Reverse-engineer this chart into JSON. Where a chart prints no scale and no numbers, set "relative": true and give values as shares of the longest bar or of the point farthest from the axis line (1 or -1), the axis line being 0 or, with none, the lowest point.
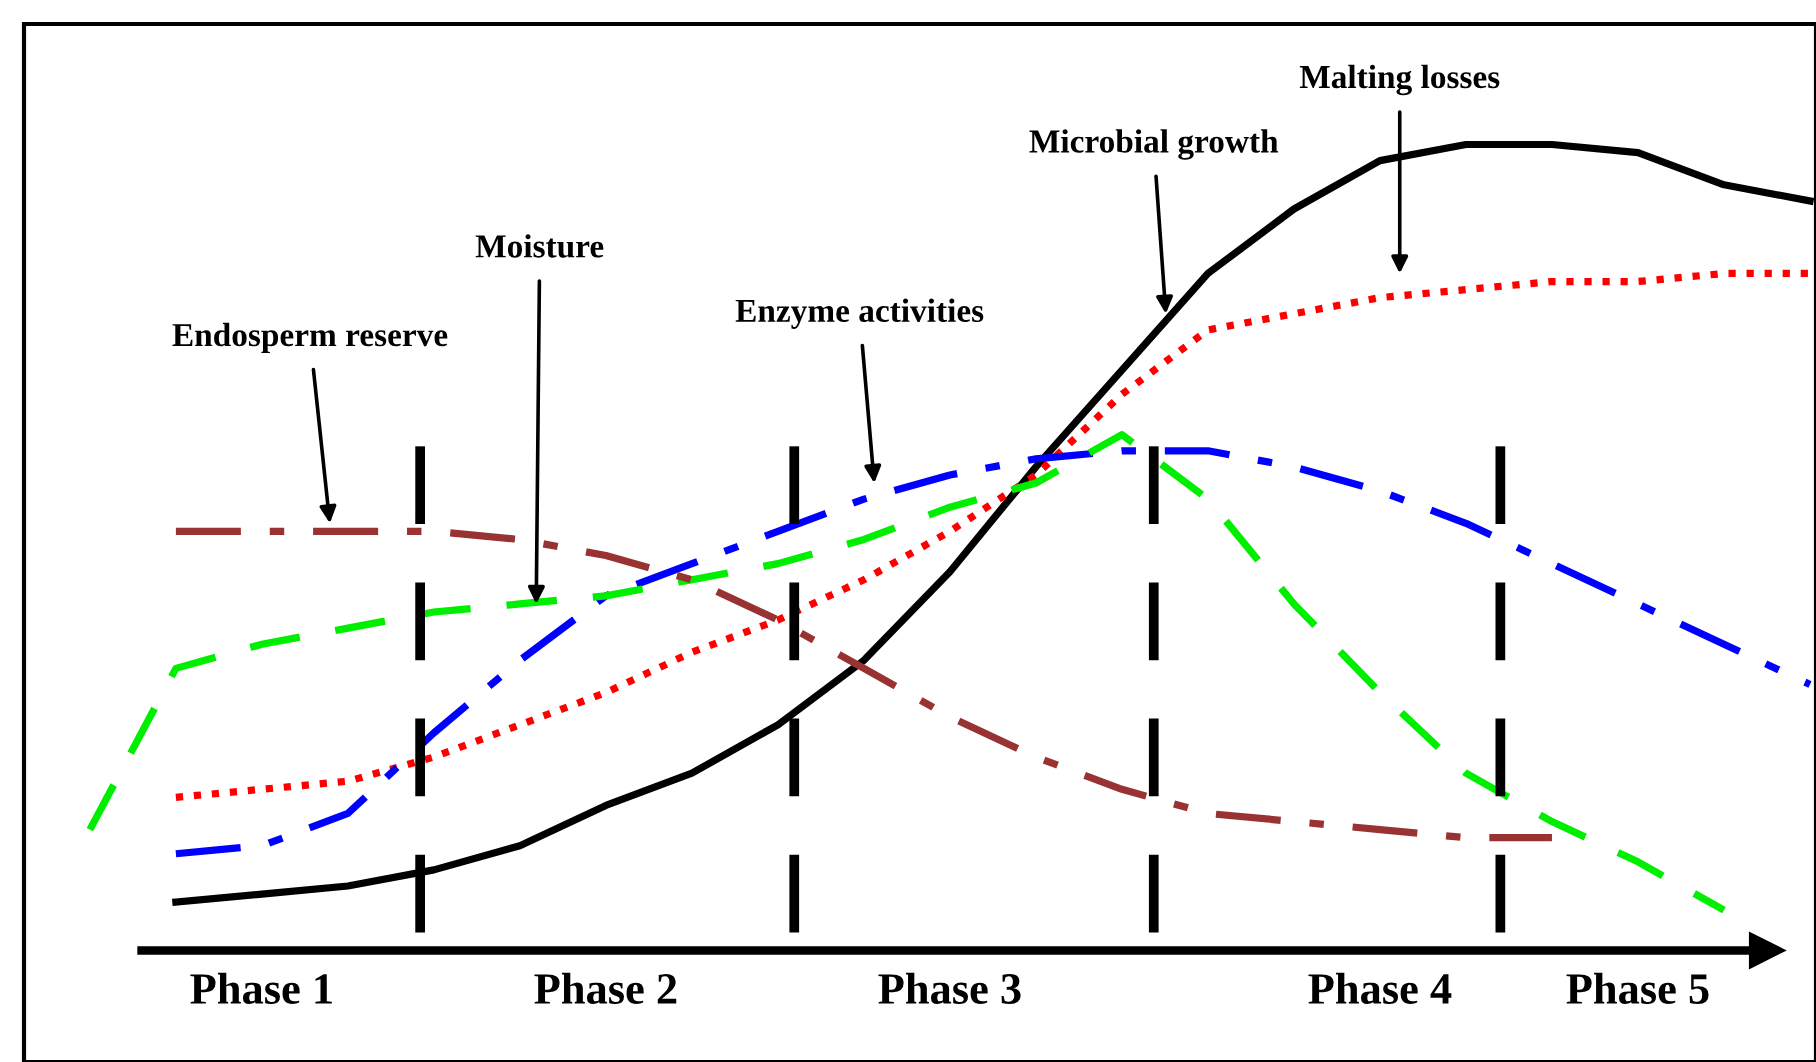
{
  "chart_data": {
    "type": "line",
    "relative": true,
    "categories": [
      null,
      null,
      "Phase 1",
      null,
      null,
      null,
      "Phase 2",
      null,
      null,
      null,
      "Phase 3",
      null,
      null,
      null,
      null,
      "Phase 4",
      null,
      null,
      "Phase 5",
      null,
      null
    ],
    "legend": false,
    "series": [
      {
        "color": "#000000",
        "line_style": "solid",
        "values": [
          null,
          0.06,
          0.07,
          0.08,
          0.1,
          0.13,
          0.18,
          0.22,
          0.28,
          0.36,
          0.47,
          0.6,
          0.72,
          0.84,
          0.92,
          0.98,
          1.0,
          1.0,
          0.99,
          0.95,
          0.93
        ]
      },
      {
        "color": "#ff0000",
        "line_style": "dotted",
        "values": [
          null,
          0.19,
          0.2,
          0.21,
          0.24,
          0.28,
          0.32,
          0.37,
          0.41,
          0.46,
          0.52,
          0.59,
          0.69,
          0.77,
          0.79,
          0.81,
          0.82,
          0.83,
          0.83,
          0.84,
          0.84
        ]
      },
      {
        "color": "#0000ff",
        "line_style": "dashdot",
        "values": [
          null,
          0.12,
          0.13,
          0.17,
          0.27,
          0.36,
          0.44,
          0.48,
          0.52,
          0.56,
          0.59,
          0.61,
          0.62,
          0.62,
          0.6,
          0.57,
          0.53,
          0.48,
          0.43,
          0.38,
          0.33
        ]
      },
      {
        "color": "#00ee00",
        "line_style": "dashed",
        "values": [
          0.15,
          0.35,
          0.38,
          0.4,
          0.42,
          0.43,
          0.44,
          0.46,
          0.48,
          0.51,
          0.55,
          0.58,
          0.64,
          0.56,
          0.43,
          0.32,
          0.22,
          0.16,
          0.11,
          0.05,
          null
        ]
      },
      {
        "color": "#993333",
        "line_style": "dashdot",
        "values": [
          null,
          0.52,
          0.52,
          0.52,
          0.52,
          0.51,
          0.49,
          0.46,
          0.41,
          0.35,
          0.29,
          0.24,
          0.2,
          0.17,
          0.16,
          0.15,
          0.14,
          0.14,
          null,
          null,
          null
        ]
      }
    ],
    "annotations": [
      "Endosperm reserve",
      "Moisture",
      "Enzyme activities",
      "Microbial growth",
      "Malting losses"
    ]
  }
}
